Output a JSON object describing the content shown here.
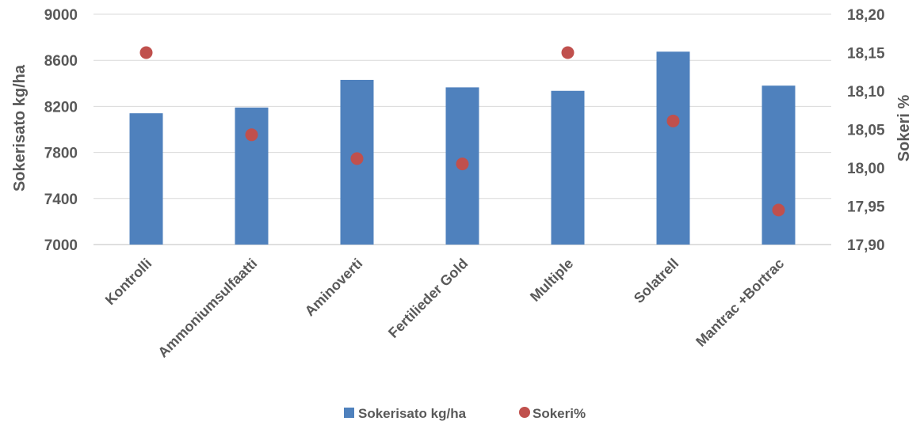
{
  "chart_data": {
    "type": "bar",
    "categories": [
      "Kontrolli",
      "Ammoniumsulfaatti",
      "Aminoverti",
      "Fertilieder Gold",
      "Multiple",
      "Solatrell",
      "Mantrac +Bortrac"
    ],
    "series": [
      {
        "name": "Sokerisato kg/ha",
        "type": "bar",
        "axis": "left",
        "color": "#4F81BD",
        "values": [
          8140,
          8190,
          8430,
          8365,
          8335,
          8675,
          8380
        ]
      },
      {
        "name": "Sokeri%",
        "type": "scatter",
        "axis": "right",
        "color": "#C0504D",
        "values": [
          18.15,
          18.043,
          18.012,
          18.005,
          18.15,
          18.061,
          17.945
        ]
      }
    ],
    "ylabel": "Sokerisato kg/ha",
    "y2label": "Sokeri %",
    "ylim": [
      7000,
      9000
    ],
    "y2lim": [
      17.9,
      18.2
    ],
    "yticks": [
      "7000",
      "7400",
      "7800",
      "8200",
      "8600",
      "9000"
    ],
    "y2ticks": [
      "17,90",
      "17,95",
      "18,00",
      "18,05",
      "18,10",
      "18,15",
      "18,20"
    ],
    "grid": true,
    "legend": "bottom-center"
  }
}
